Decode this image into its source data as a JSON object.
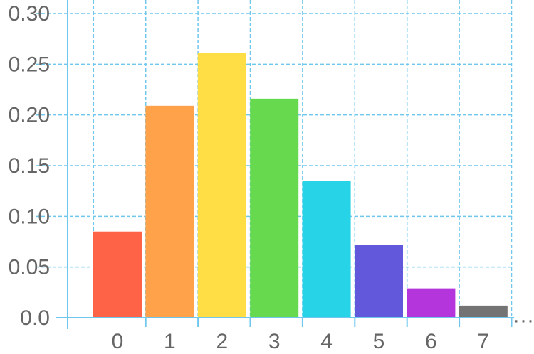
{
  "chart_data": {
    "type": "bar",
    "title": "",
    "xlabel": "",
    "ylabel": "",
    "categories": [
      "0",
      "1",
      "2",
      "3",
      "4",
      "5",
      "6",
      "7"
    ],
    "values": [
      0.085,
      0.209,
      0.261,
      0.216,
      0.135,
      0.072,
      0.029,
      0.012
    ],
    "colors": [
      "#ff6347",
      "#ffa24a",
      "#ffdd44",
      "#66d94f",
      "#27d3e6",
      "#6158db",
      "#b535dd",
      "#737373"
    ],
    "ylim": [
      0,
      0.3
    ],
    "yticks": [
      "0.0",
      "0.05",
      "0.10",
      "0.15",
      "0.20",
      "0.25",
      "0.30"
    ],
    "ytick_values": [
      0,
      0.05,
      0.1,
      0.15,
      0.2,
      0.25,
      0.3
    ],
    "continuation_marker": "···",
    "grid": true,
    "legend": "none"
  }
}
